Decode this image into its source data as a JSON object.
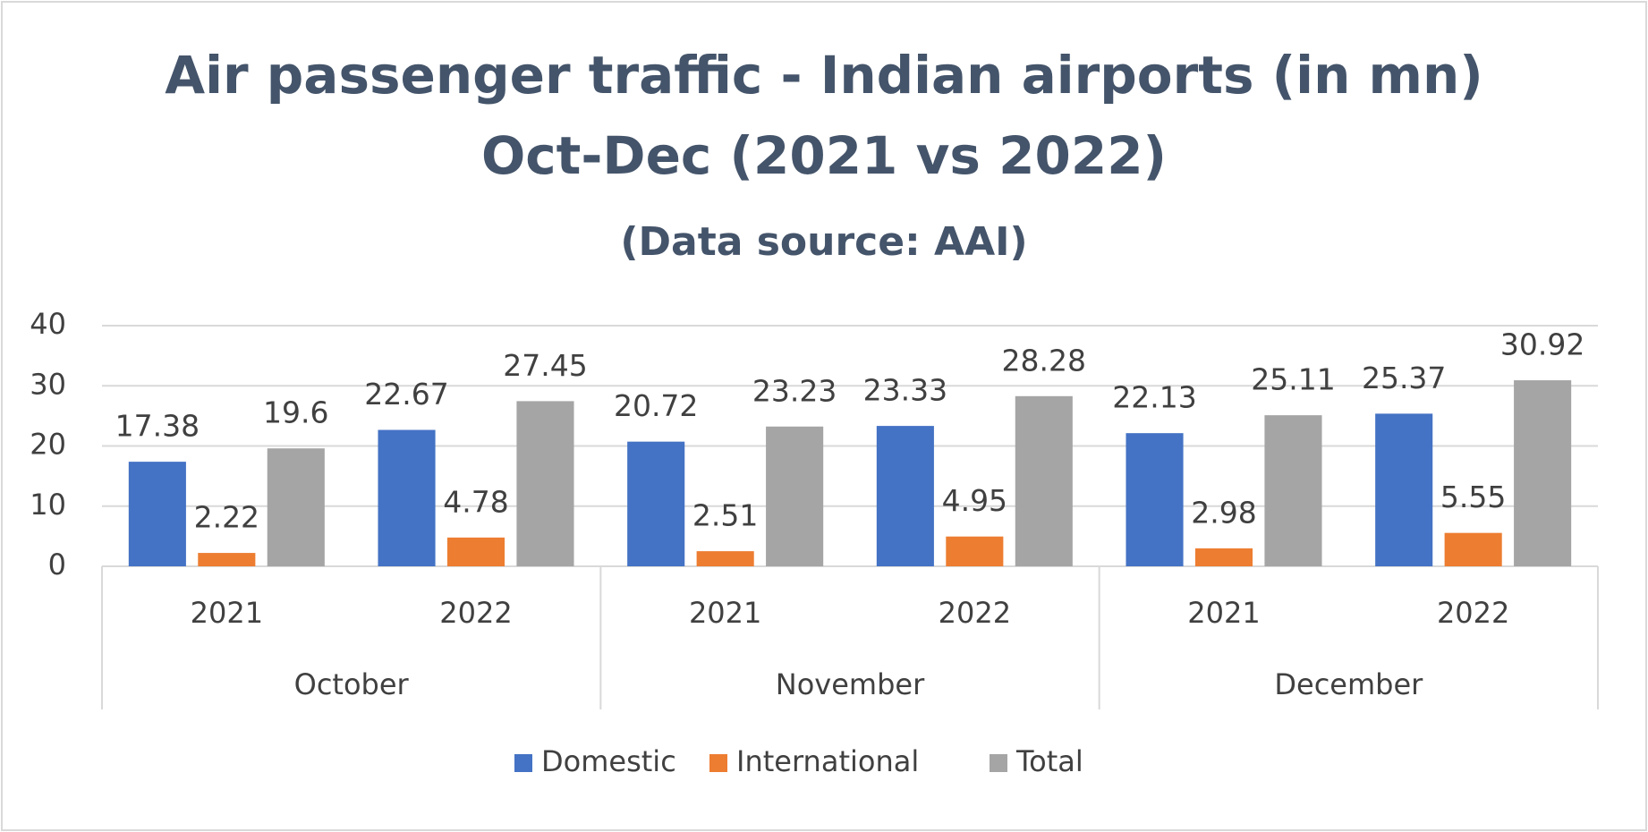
{
  "chart_data": {
    "type": "bar",
    "title": [
      "Air passenger traffic - Indian airports (in mn)",
      "Oct-Dec (2021 vs 2022)"
    ],
    "subtitle": "(Data source: AAI)",
    "categories": [
      "2021",
      "2022",
      "2021",
      "2022",
      "2021",
      "2022"
    ],
    "groups": [
      "October",
      "November",
      "December"
    ],
    "series": [
      {
        "name": "Domestic",
        "color": "#4472c4",
        "values": [
          17.38,
          22.67,
          20.72,
          23.33,
          22.13,
          25.37
        ]
      },
      {
        "name": "International",
        "color": "#ed7d31",
        "values": [
          2.22,
          4.78,
          2.51,
          4.95,
          2.98,
          5.55
        ]
      },
      {
        "name": "Total",
        "color": "#a5a5a5",
        "values": [
          19.6,
          27.45,
          23.23,
          28.28,
          25.11,
          30.92
        ]
      }
    ],
    "ylim": [
      0,
      40
    ],
    "yticks": [
      0,
      10,
      20,
      30,
      40
    ],
    "grid": true,
    "legend": "bottom"
  }
}
